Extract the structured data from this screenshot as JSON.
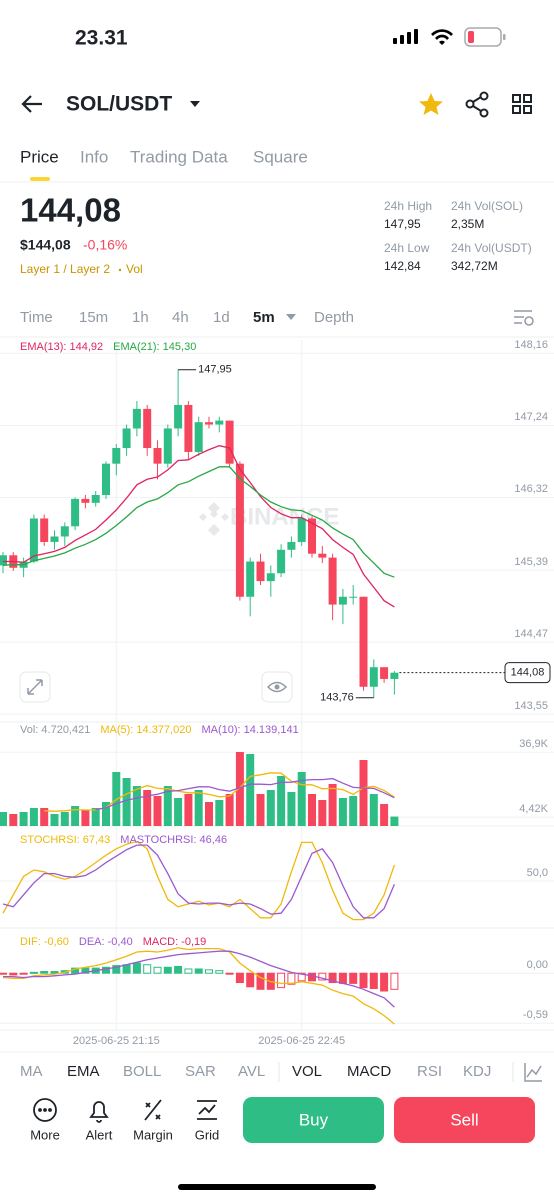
{
  "status_bar": {
    "time": "23.31"
  },
  "header": {
    "pair": "SOL/USDT"
  },
  "tabs": [
    "Price",
    "Info",
    "Trading Data",
    "Square"
  ],
  "price": {
    "last": "144,08",
    "usd": "$144,08",
    "change": "-0,16%",
    "tags": "Layer 1 / Layer 2",
    "tag2": "Vol"
  },
  "stats": [
    {
      "label": "24h High",
      "value": "147,95"
    },
    {
      "label": "24h Vol(SOL)",
      "value": "2,35M"
    },
    {
      "label": "24h Low",
      "value": "142,84"
    },
    {
      "label": "24h Vol(USDT)",
      "value": "342,72M"
    }
  ],
  "timeframes": [
    "Time",
    "15m",
    "1h",
    "4h",
    "1d",
    "5m",
    "Depth"
  ],
  "indicators": [
    "MA",
    "EMA",
    "BOLL",
    "SAR",
    "AVL",
    "VOL",
    "MACD",
    "RSI",
    "KDJ"
  ],
  "actions": [
    "More",
    "Alert",
    "Margin",
    "Grid"
  ],
  "buttons": [
    "Buy",
    "Sell"
  ],
  "chart_data": [
    {
      "type": "candlestick",
      "watermark": "BINANCE",
      "up_color": "#2ebd85",
      "down_color": "#f6465d",
      "open": [
        145.45,
        145.58,
        145.42,
        145.5,
        146.05,
        145.75,
        145.82,
        145.95,
        146.3,
        146.25,
        146.35,
        146.75,
        146.95,
        147.2,
        147.45,
        146.95,
        146.75,
        147.2,
        147.5,
        146.9,
        147.28,
        147.25,
        147.3,
        146.75,
        145.05,
        145.5,
        145.25,
        145.35,
        145.65,
        145.75,
        146.05,
        145.6,
        145.55,
        144.95,
        145.05,
        145.05,
        143.9,
        144.15,
        144.0
      ],
      "high": [
        145.62,
        145.62,
        145.55,
        146.1,
        146.1,
        145.9,
        146.0,
        146.32,
        146.35,
        146.4,
        146.78,
        147.0,
        147.25,
        147.55,
        147.5,
        147.05,
        147.25,
        147.95,
        147.55,
        147.35,
        147.35,
        147.35,
        147.3,
        146.78,
        145.55,
        145.6,
        145.45,
        145.72,
        145.82,
        146.1,
        146.08,
        145.7,
        145.6,
        145.15,
        145.2,
        145.05,
        144.25,
        144.15,
        144.1
      ],
      "low": [
        145.35,
        145.38,
        145.3,
        145.48,
        145.7,
        145.65,
        145.7,
        145.9,
        146.18,
        146.2,
        146.3,
        146.6,
        146.85,
        147.1,
        146.85,
        146.55,
        146.7,
        147.1,
        146.8,
        146.85,
        147.2,
        147.15,
        146.7,
        145.0,
        144.8,
        145.2,
        145.05,
        145.3,
        145.55,
        145.7,
        145.55,
        145.48,
        144.75,
        144.7,
        144.95,
        143.85,
        143.76,
        143.95,
        143.8
      ],
      "close": [
        145.58,
        145.42,
        145.5,
        146.05,
        145.75,
        145.82,
        145.95,
        146.3,
        146.25,
        146.35,
        146.75,
        146.95,
        147.2,
        147.45,
        146.95,
        146.75,
        147.2,
        147.5,
        146.9,
        147.28,
        147.25,
        147.3,
        146.75,
        145.05,
        145.5,
        145.25,
        145.35,
        145.65,
        145.75,
        146.05,
        145.6,
        145.55,
        144.95,
        145.05,
        145.05,
        143.9,
        144.15,
        144.0,
        144.08
      ],
      "series": [
        {
          "name": "EMA(13): 144,92",
          "color": "#e0245e",
          "values": [
            145.5,
            145.5,
            145.49,
            145.57,
            145.6,
            145.63,
            145.68,
            145.77,
            145.84,
            145.91,
            146.03,
            146.16,
            146.31,
            146.48,
            146.55,
            146.58,
            146.67,
            146.79,
            146.8,
            146.87,
            146.93,
            146.98,
            146.95,
            146.68,
            146.51,
            146.33,
            146.19,
            146.11,
            146.06,
            146.06,
            145.99,
            145.92,
            145.78,
            145.68,
            145.59,
            145.34,
            145.17,
            145.0,
            144.92
          ]
        },
        {
          "name": "EMA(21): 145,30",
          "color": "#27a844",
          "values": [
            145.45,
            145.46,
            145.46,
            145.51,
            145.54,
            145.57,
            145.61,
            145.67,
            145.72,
            145.78,
            145.86,
            145.96,
            146.07,
            146.19,
            146.26,
            146.3,
            146.38,
            146.48,
            146.52,
            146.59,
            146.65,
            146.71,
            146.71,
            146.56,
            146.46,
            146.35,
            146.26,
            146.2,
            146.16,
            146.15,
            146.09,
            146.03,
            145.93,
            145.85,
            145.78,
            145.61,
            145.48,
            145.35,
            145.3
          ]
        }
      ],
      "high_label": {
        "value": 147.95,
        "label": "147,95"
      },
      "low_label": {
        "value": 143.76,
        "label": "143,76"
      },
      "last_price": {
        "value": 144.08,
        "label": "144,08"
      },
      "ylim": [
        143.45,
        148.33
      ],
      "yticks": [
        {
          "value": 148.16,
          "label": "148,16"
        },
        {
          "value": 147.24,
          "label": "147,24"
        },
        {
          "value": 146.32,
          "label": "146,32"
        },
        {
          "value": 145.39,
          "label": "145,39"
        },
        {
          "value": 144.47,
          "label": "144,47"
        },
        {
          "value": 143.55,
          "label": "143,55"
        }
      ]
    },
    {
      "type": "bar",
      "title": "Vol: 4.720,421",
      "values": [
        7000,
        6000,
        7000,
        9000,
        9000,
        6000,
        7000,
        10000,
        8000,
        9000,
        12000,
        27000,
        24000,
        20000,
        18000,
        15000,
        20000,
        14000,
        16000,
        18000,
        12000,
        13000,
        16000,
        37000,
        36000,
        16000,
        18000,
        25000,
        17000,
        27000,
        16000,
        13000,
        21000,
        14000,
        15000,
        33000,
        16000,
        11000,
        4720.421
      ],
      "series": [
        {
          "name": "MA(5): 14.377,020",
          "color": "#f0b90b",
          "values": [
            null,
            null,
            null,
            null,
            7600,
            7400,
            7600,
            8200,
            8000,
            8000,
            9200,
            13200,
            16000,
            18400,
            20200,
            18800,
            18600,
            17400,
            16600,
            16600,
            15800,
            14600,
            15000,
            19200,
            24800,
            25600,
            26600,
            26400,
            22400,
            20600,
            20600,
            18600,
            18800,
            18200,
            15800,
            19200,
            19800,
            17800,
            14377.02
          ]
        },
        {
          "name": "MA(10): 14.139,141",
          "color": "#9b59d0",
          "values": [
            null,
            null,
            null,
            null,
            null,
            null,
            null,
            null,
            null,
            8200,
            9100,
            11200,
            12900,
            14000,
            15000,
            15900,
            17300,
            17700,
            18700,
            19600,
            19600,
            18200,
            17400,
            19100,
            20900,
            20900,
            20700,
            21800,
            21900,
            22800,
            23200,
            23200,
            23700,
            21400,
            19300,
            19000,
            18800,
            16600,
            14139.141
          ]
        }
      ],
      "ylim": [
        0,
        52000
      ],
      "yticks": [
        {
          "value": 36900,
          "label": "36,9K"
        },
        {
          "value": 4420,
          "label": "4,42K"
        }
      ]
    },
    {
      "type": "line",
      "series": [
        {
          "name": "STOCHRSI: 67,43",
          "color": "#f0b90b",
          "values": [
            15,
            35,
            55,
            62,
            60,
            55,
            52,
            55,
            62,
            70,
            78,
            85,
            90,
            93,
            85,
            55,
            30,
            22,
            25,
            28,
            24,
            26,
            22,
            30,
            20,
            10,
            10,
            25,
            60,
            92,
            92,
            70,
            40,
            15,
            8,
            8,
            15,
            35,
            67.43
          ]
        },
        {
          "name": "MASTOCHRSI: 46,46",
          "color": "#9b59d0",
          "values": [
            25,
            22,
            35,
            48,
            58,
            58,
            55,
            54,
            56,
            62,
            70,
            77,
            84,
            89,
            89,
            78,
            58,
            36,
            26,
            25,
            26,
            26,
            24,
            26,
            25,
            20,
            14,
            15,
            30,
            55,
            80,
            85,
            70,
            45,
            22,
            10,
            10,
            20,
            46.46
          ]
        }
      ],
      "ylim": [
        0,
        100
      ],
      "yticks": [
        {
          "value": 50,
          "label": "50,0"
        }
      ]
    },
    {
      "type": "macd",
      "categories": [
        null,
        null,
        null,
        null,
        null,
        null,
        null,
        null,
        null,
        null,
        null,
        "2025-06-25 21:15",
        null,
        null,
        null,
        null,
        null,
        null,
        null,
        null,
        null,
        null,
        null,
        null,
        null,
        null,
        null,
        null,
        null,
        "2025-06-25 22:45",
        null,
        null,
        null,
        null,
        null,
        null,
        null,
        null,
        null
      ],
      "series": [
        {
          "name": "DIF: -0,60",
          "color": "#f0b90b",
          "values": [
            -0.05,
            -0.06,
            -0.06,
            -0.03,
            -0.02,
            -0.01,
            0.01,
            0.05,
            0.07,
            0.09,
            0.12,
            0.16,
            0.2,
            0.25,
            0.26,
            0.25,
            0.27,
            0.3,
            0.28,
            0.29,
            0.29,
            0.29,
            0.25,
            0.12,
            0.03,
            -0.05,
            -0.1,
            -0.12,
            -0.12,
            -0.1,
            -0.12,
            -0.14,
            -0.2,
            -0.24,
            -0.27,
            -0.36,
            -0.42,
            -0.5,
            -0.6
          ]
        },
        {
          "name": "DEA: -0,40",
          "color": "#9b59d0",
          "values": [
            -0.04,
            -0.04,
            -0.05,
            -0.04,
            -0.04,
            -0.03,
            -0.02,
            -0.01,
            0.01,
            0.03,
            0.05,
            0.07,
            0.1,
            0.13,
            0.16,
            0.18,
            0.2,
            0.22,
            0.23,
            0.24,
            0.25,
            0.26,
            0.26,
            0.23,
            0.19,
            0.14,
            0.09,
            0.05,
            0.01,
            -0.01,
            -0.03,
            -0.06,
            -0.09,
            -0.12,
            -0.15,
            -0.19,
            -0.24,
            -0.29,
            -0.4
          ]
        }
      ],
      "histogram": {
        "name": "MACD: -0,19",
        "color": "#e0245e",
        "values": [
          -0.01,
          -0.02,
          -0.01,
          0.01,
          0.02,
          0.02,
          0.03,
          0.06,
          0.06,
          0.06,
          0.07,
          0.09,
          0.1,
          0.12,
          0.1,
          0.07,
          0.07,
          0.08,
          0.05,
          0.05,
          0.04,
          0.03,
          -0.01,
          -0.11,
          -0.16,
          -0.19,
          -0.19,
          -0.17,
          -0.13,
          -0.09,
          -0.09,
          -0.08,
          -0.11,
          -0.12,
          -0.12,
          -0.17,
          -0.18,
          -0.21,
          -0.19
        ]
      },
      "ylim": [
        -0.67,
        0.51
      ],
      "yticks": [
        {
          "value": 0,
          "label": "0,00"
        },
        {
          "value": -0.59,
          "label": "-0,59"
        }
      ]
    }
  ]
}
